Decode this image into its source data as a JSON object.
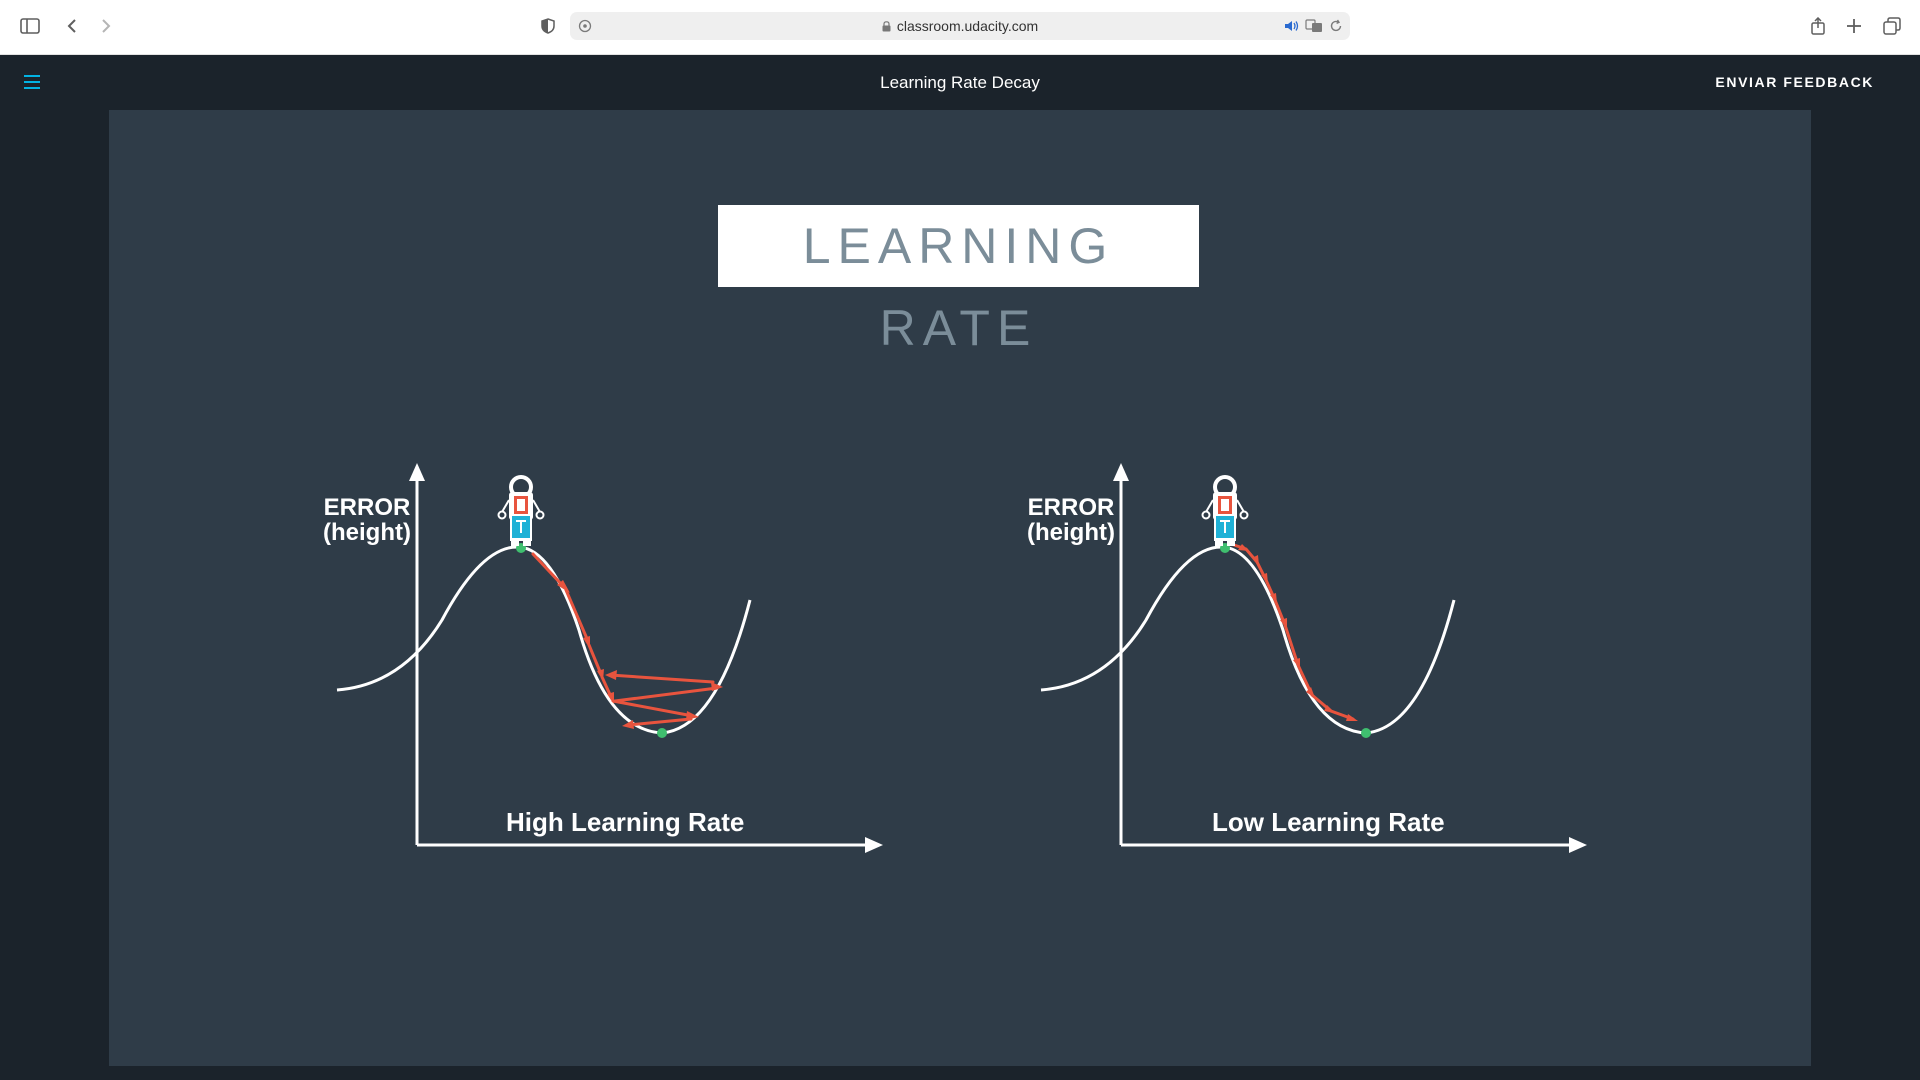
{
  "browser": {
    "url": "classroom.udacity.com",
    "icons": [
      "sidebar-icon",
      "back-icon",
      "forward-icon",
      "privacy-shield-icon",
      "site-settings-icon",
      "lock-icon",
      "audio-icon",
      "translate-icon",
      "reload-icon",
      "share-icon",
      "new-tab-icon",
      "tab-overview-icon"
    ]
  },
  "header": {
    "title": "Learning Rate Decay",
    "feedback_label": "ENVIAR FEEDBACK",
    "menu_icon": "hamburger-menu-icon",
    "accent": "#02b3e4"
  },
  "slide": {
    "title": "LEARNING RATE",
    "left": {
      "y_label_line1": "ERROR",
      "y_label_line2": "(height)",
      "caption": "High Learning Rate"
    },
    "right": {
      "y_label_line1": "ERROR",
      "y_label_line2": "(height)",
      "caption": "Low Learning Rate"
    },
    "colors": {
      "curve": "#ffffff",
      "arrow": "#e8543e",
      "point": "#3fbf6f",
      "background": "#2f3c48"
    }
  }
}
